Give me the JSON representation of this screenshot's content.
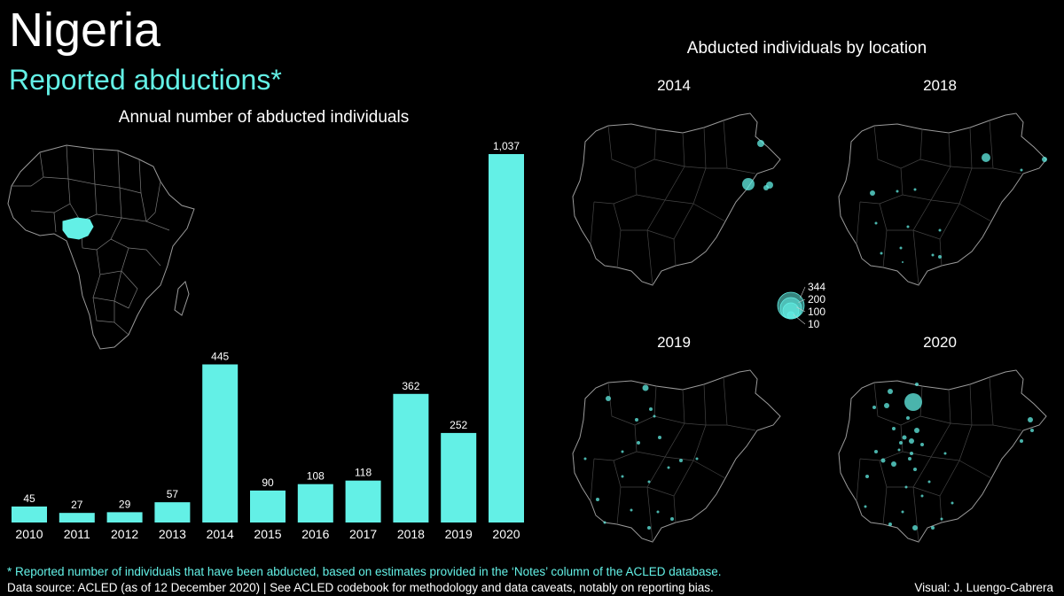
{
  "header": {
    "country": "Nigeria",
    "subtitle": "Reported abductions*"
  },
  "bar_chart_title": "Annual number of abducted individuals",
  "maps": {
    "title": "Abducted individuals by location",
    "panels": [
      {
        "year": "2014"
      },
      {
        "year": "2018"
      },
      {
        "year": "2019"
      },
      {
        "year": "2020"
      }
    ],
    "size_legend": [
      "344",
      "200",
      "100",
      "10"
    ]
  },
  "footer": {
    "footnote": "* Reported number of individuals that have been abducted, based on estimates provided in the ‘Notes’ column of the ACLED database.",
    "source": "Data source: ACLED (as of 12 December 2020)  | See ACLED codebook for methodology and data caveats, notably on reporting bias.",
    "credit": "Visual: J. Luengo-Cabrera"
  },
  "colors": {
    "accent": "#63f0e6",
    "background": "#000000",
    "map_outline": "#9a9a9a"
  },
  "chart_data": {
    "type": "bar",
    "title": "Annual number of abducted individuals",
    "categories": [
      "2010",
      "2011",
      "2012",
      "2013",
      "2014",
      "2015",
      "2016",
      "2017",
      "2018",
      "2019",
      "2020"
    ],
    "values": [
      45,
      27,
      29,
      57,
      445,
      90,
      108,
      118,
      362,
      252,
      1037
    ],
    "value_labels": [
      "45",
      "27",
      "29",
      "57",
      "445",
      "90",
      "108",
      "118",
      "362",
      "252",
      "1,037"
    ],
    "ylim": [
      0,
      1037
    ],
    "grid": false,
    "legend": "none"
  }
}
